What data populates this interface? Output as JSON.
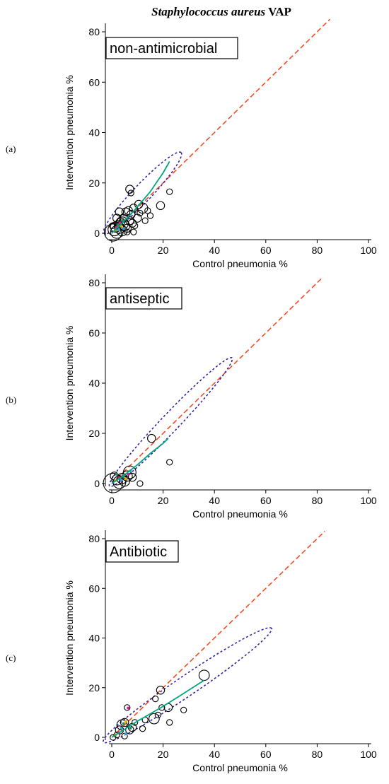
{
  "figure": {
    "title_italic": "Staphylococcus aureus",
    "title_rest": " VAP"
  },
  "colors": {
    "identity_line": "#f04e23",
    "fit_line": "#00a77f",
    "ellipse": "#3a1fa8",
    "markers": "#000000",
    "inner_marks": [
      "#e0b000",
      "#d02090",
      "#3fa0d0",
      "#2e8b57"
    ]
  },
  "chart_data": [
    {
      "type": "scatter",
      "panel_tag": "(a)",
      "label": "non-antimicrobial",
      "xlabel": "Control pneumonia %",
      "ylabel": "Intervention pneumonia %",
      "xlim": [
        0,
        100
      ],
      "ylim": [
        0,
        80
      ],
      "xticks": [
        0,
        20,
        40,
        60,
        80,
        100
      ],
      "yticks": [
        0,
        20,
        40,
        60,
        80
      ],
      "grid": false,
      "points": [
        {
          "x": 0.5,
          "y": 0.3,
          "size": 6
        },
        {
          "x": 1,
          "y": 1.5,
          "size": 4
        },
        {
          "x": 2,
          "y": 0.5,
          "size": 4
        },
        {
          "x": 1.5,
          "y": 2.5,
          "size": 3
        },
        {
          "x": 3,
          "y": 2,
          "size": 3
        },
        {
          "x": 2.5,
          "y": 3.5,
          "size": 2
        },
        {
          "x": 4,
          "y": 1,
          "size": 3
        },
        {
          "x": 3.5,
          "y": 4.5,
          "size": 2
        },
        {
          "x": 5,
          "y": 3,
          "size": 3
        },
        {
          "x": 4.5,
          "y": 6,
          "size": 2
        },
        {
          "x": 6,
          "y": 2,
          "size": 2
        },
        {
          "x": 5.5,
          "y": 8.5,
          "size": 2
        },
        {
          "x": 7,
          "y": 5,
          "size": 2
        },
        {
          "x": 6.5,
          "y": 9,
          "size": 2
        },
        {
          "x": 8,
          "y": 4,
          "size": 2
        },
        {
          "x": 7.5,
          "y": 7.5,
          "size": 2
        },
        {
          "x": 9,
          "y": 3,
          "size": 1
        },
        {
          "x": 8.5,
          "y": 10,
          "size": 2
        },
        {
          "x": 10,
          "y": 6,
          "size": 2
        },
        {
          "x": 10.5,
          "y": 11.5,
          "size": 2
        },
        {
          "x": 11,
          "y": 8,
          "size": 1
        },
        {
          "x": 12,
          "y": 10,
          "size": 3
        },
        {
          "x": 13,
          "y": 5,
          "size": 1
        },
        {
          "x": 14,
          "y": 9,
          "size": 1
        },
        {
          "x": 15,
          "y": 7,
          "size": 1
        },
        {
          "x": 7,
          "y": 17.5,
          "size": 2
        },
        {
          "x": 7.5,
          "y": 16,
          "size": 1
        },
        {
          "x": 8.5,
          "y": 0.5,
          "size": 1
        },
        {
          "x": 19,
          "y": 11,
          "size": 2
        },
        {
          "x": 22.5,
          "y": 16.5,
          "size": 1
        },
        {
          "x": 0.2,
          "y": 3,
          "size": 1
        },
        {
          "x": 2,
          "y": 6,
          "size": 2
        },
        {
          "x": 3,
          "y": 8.5,
          "size": 2
        },
        {
          "x": 6,
          "y": 0.5,
          "size": 1
        },
        {
          "x": 4,
          "y": 4,
          "size": 4
        }
      ],
      "fit_curve": {
        "x": [
          0,
          5,
          10,
          15,
          20,
          22.5
        ],
        "y": [
          0,
          5,
          10.5,
          16.5,
          24,
          28.5
        ]
      },
      "identity_line": [
        [
          0,
          0
        ],
        [
          85,
          85
        ]
      ],
      "ellipse": {
        "cx": 12,
        "cy": 16,
        "rx": 22,
        "ry": 3.5,
        "angle_deg": 47
      }
    },
    {
      "type": "scatter",
      "panel_tag": "(b)",
      "label": "antiseptic",
      "xlabel": "Control pneumonia %",
      "ylabel": "Intervention pneumonia %",
      "xlim": [
        0,
        100
      ],
      "ylim": [
        0,
        80
      ],
      "xticks": [
        0,
        20,
        40,
        60,
        80,
        100
      ],
      "yticks": [
        0,
        20,
        40,
        60,
        80
      ],
      "grid": false,
      "points": [
        {
          "x": 0.5,
          "y": 0.2,
          "size": 7
        },
        {
          "x": 2,
          "y": 1.5,
          "size": 3
        },
        {
          "x": 3,
          "y": 0.5,
          "size": 4
        },
        {
          "x": 4,
          "y": 2,
          "size": 3
        },
        {
          "x": 5,
          "y": 1,
          "size": 3
        },
        {
          "x": 6,
          "y": 3,
          "size": 3
        },
        {
          "x": 7,
          "y": 4.5,
          "size": 4
        },
        {
          "x": 1,
          "y": 3,
          "size": 2
        },
        {
          "x": 8,
          "y": 2.5,
          "size": 2
        },
        {
          "x": 11,
          "y": 0,
          "size": 1
        },
        {
          "x": 15.5,
          "y": 18,
          "size": 2
        },
        {
          "x": 22.5,
          "y": 8.5,
          "size": 1
        }
      ],
      "fit_curve": {
        "x": [
          0,
          5,
          10,
          15,
          20,
          22
        ],
        "y": [
          0,
          3.5,
          7.5,
          12,
          16,
          18
        ]
      },
      "identity_line": [
        [
          0,
          0
        ],
        [
          82,
          82
        ]
      ],
      "ellipse": {
        "cx": 23,
        "cy": 24.5,
        "rx": 35,
        "ry": 3.5,
        "angle_deg": 47
      }
    },
    {
      "type": "scatter",
      "panel_tag": "(c)",
      "label": "Antibiotic",
      "xlabel": "Control pneumonia %",
      "ylabel": "Intervention pneumonia %",
      "xlim": [
        0,
        100
      ],
      "ylim": [
        0,
        80
      ],
      "xticks": [
        0,
        20,
        40,
        60,
        80,
        100
      ],
      "yticks": [
        0,
        20,
        40,
        60,
        80
      ],
      "grid": false,
      "points": [
        {
          "x": 0.5,
          "y": 0,
          "size": 1
        },
        {
          "x": 2,
          "y": 1,
          "size": 1
        },
        {
          "x": 3,
          "y": 3,
          "size": 2
        },
        {
          "x": 4,
          "y": 5,
          "size": 3
        },
        {
          "x": 5,
          "y": 6,
          "size": 2
        },
        {
          "x": 6,
          "y": 12,
          "size": 1
        },
        {
          "x": 5,
          "y": 0.5,
          "size": 1
        },
        {
          "x": 7,
          "y": 3,
          "size": 2
        },
        {
          "x": 8,
          "y": 4,
          "size": 2
        },
        {
          "x": 9,
          "y": 6,
          "size": 1
        },
        {
          "x": 12,
          "y": 3.5,
          "size": 1
        },
        {
          "x": 13,
          "y": 7,
          "size": 1
        },
        {
          "x": 16.5,
          "y": 7.5,
          "size": 3
        },
        {
          "x": 17,
          "y": 15.5,
          "size": 1
        },
        {
          "x": 18,
          "y": 9,
          "size": 1
        },
        {
          "x": 19,
          "y": 19,
          "size": 2
        },
        {
          "x": 19.5,
          "y": 12,
          "size": 1
        },
        {
          "x": 22,
          "y": 12,
          "size": 2
        },
        {
          "x": 22.5,
          "y": 6,
          "size": 1
        },
        {
          "x": 28,
          "y": 11,
          "size": 1
        },
        {
          "x": 36,
          "y": 25,
          "size": 3
        }
      ],
      "fit_curve": {
        "x": [
          0,
          10,
          20,
          30,
          36
        ],
        "y": [
          0,
          6.5,
          12.5,
          19,
          23
        ]
      },
      "identity_line": [
        [
          0,
          0
        ],
        [
          83,
          83
        ]
      ],
      "ellipse": {
        "cx": 29.5,
        "cy": 21,
        "rx": 40,
        "ry": 4,
        "angle_deg": 35
      }
    }
  ]
}
